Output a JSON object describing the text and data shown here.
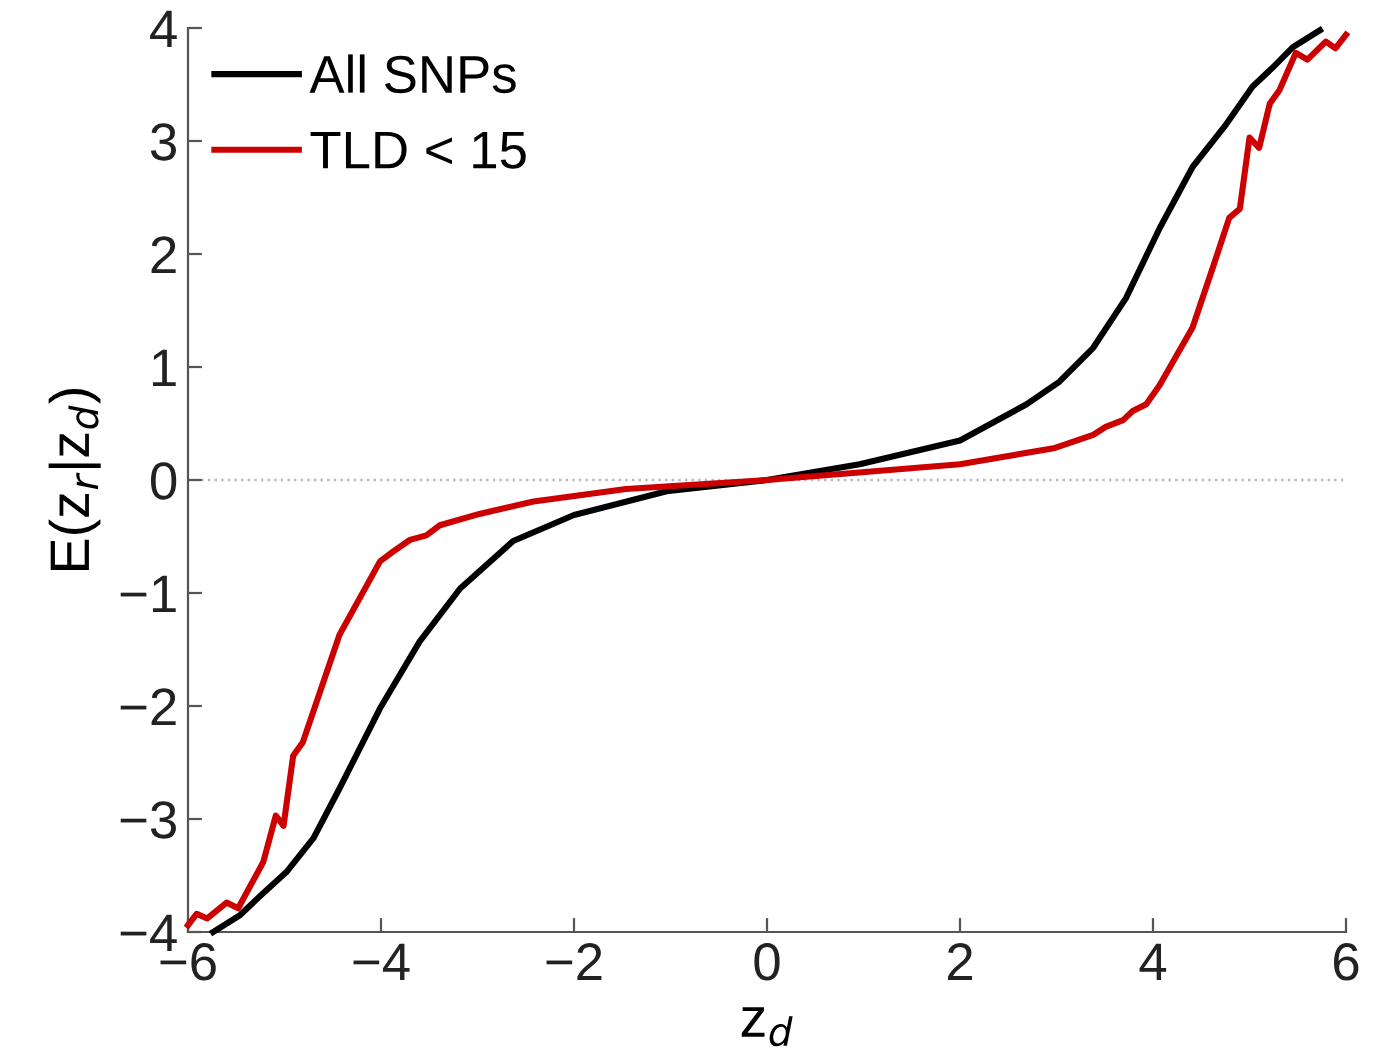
{
  "chart_data": {
    "type": "line",
    "xlabel": "z$_{d}$",
    "ylabel": "E(z$_{r}$|z$_{d}$)",
    "xlim": [
      -6,
      6
    ],
    "ylim": [
      -4,
      4
    ],
    "xticks": [
      {
        "value": -6,
        "label": "−6"
      },
      {
        "value": -4,
        "label": "−4"
      },
      {
        "value": -2,
        "label": "−2"
      },
      0,
      2,
      4,
      6
    ],
    "yticks": [
      {
        "value": -4,
        "label": "−4"
      },
      {
        "value": -3,
        "label": "−3"
      },
      {
        "value": -2,
        "label": "−2"
      },
      {
        "value": -1,
        "label": "−1"
      },
      0,
      1,
      2,
      3,
      4
    ],
    "grid": false,
    "legend": "top left",
    "line_style": "solid",
    "marker": "none",
    "ref_lines": [
      {
        "axis": "y",
        "value": 0,
        "color": "#bbbbbb",
        "line_style": "dotted"
      }
    ],
    "series": [
      {
        "name": "All SNPs",
        "color": "#000000",
        "x": [
          -5.74,
          -5.46,
          -5.25,
          -4.98,
          -4.7,
          -4.43,
          -4.01,
          -3.6,
          -3.18,
          -2.63,
          -2.0,
          -1.04,
          0,
          0.96,
          2.0,
          2.69,
          3.03,
          3.38,
          3.72,
          4.07,
          4.41,
          4.76,
          5.03,
          5.24,
          5.45,
          5.73
        ],
        "values": [
          -4.0,
          -3.85,
          -3.68,
          -3.47,
          -3.17,
          -2.73,
          -2.02,
          -1.43,
          -0.96,
          -0.54,
          -0.31,
          -0.1,
          0,
          0.14,
          0.35,
          0.67,
          0.87,
          1.17,
          1.61,
          2.23,
          2.77,
          3.15,
          3.48,
          3.65,
          3.83,
          3.98
        ]
      },
      {
        "name": "TLD < 15",
        "color": "#cc0000",
        "x": [
          -6.0,
          -5.91,
          -5.8,
          -5.6,
          -5.48,
          -5.22,
          -5.09,
          -5.01,
          -4.91,
          -4.81,
          -4.43,
          -4.01,
          -3.87,
          -3.7,
          -3.53,
          -3.39,
          -2.98,
          -2.42,
          -1.46,
          0,
          2.0,
          2.97,
          3.38,
          3.51,
          3.69,
          3.79,
          3.93,
          4.07,
          4.41,
          4.62,
          4.79,
          4.9,
          5.0,
          5.1,
          5.21,
          5.31,
          5.48,
          5.6,
          5.79,
          5.89,
          6.0
        ],
        "values": [
          -3.94,
          -3.84,
          -3.88,
          -3.74,
          -3.79,
          -3.38,
          -2.97,
          -3.06,
          -2.44,
          -2.32,
          -1.37,
          -0.72,
          -0.63,
          -0.53,
          -0.49,
          -0.4,
          -0.3,
          -0.19,
          -0.08,
          0,
          0.14,
          0.28,
          0.4,
          0.47,
          0.53,
          0.61,
          0.67,
          0.84,
          1.35,
          1.88,
          2.32,
          2.4,
          3.03,
          2.94,
          3.33,
          3.45,
          3.78,
          3.72,
          3.88,
          3.82,
          3.94
        ]
      }
    ]
  }
}
